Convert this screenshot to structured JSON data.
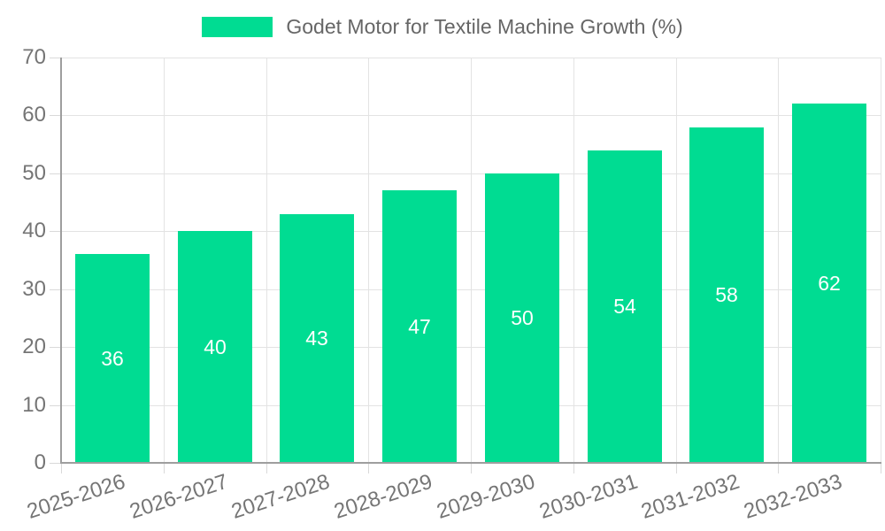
{
  "chart_data": {
    "type": "bar",
    "title": "",
    "legend": "Godet Motor for Textile Machine Growth (%)",
    "legend_position": "top",
    "categories": [
      "2025-2026",
      "2026-2027",
      "2027-2028",
      "2028-2029",
      "2029-2030",
      "2030-2031",
      "2031-2032",
      "2032-2033"
    ],
    "values": [
      36,
      40,
      43,
      47,
      50,
      54,
      58,
      62
    ],
    "xlabel": "",
    "ylabel": "",
    "ylim": [
      0,
      70
    ],
    "yticks": [
      0,
      10,
      20,
      30,
      40,
      50,
      60,
      70
    ],
    "grid": true,
    "value_labels_inside_bars": true,
    "colors": {
      "bar": "#00dc92",
      "grid": "#e3e3e3",
      "axis": "#9e9e9e",
      "tick": "#d9d9d9",
      "tick_text": "#757575",
      "legend_text": "#666666",
      "value_label": "#ffffff"
    }
  }
}
